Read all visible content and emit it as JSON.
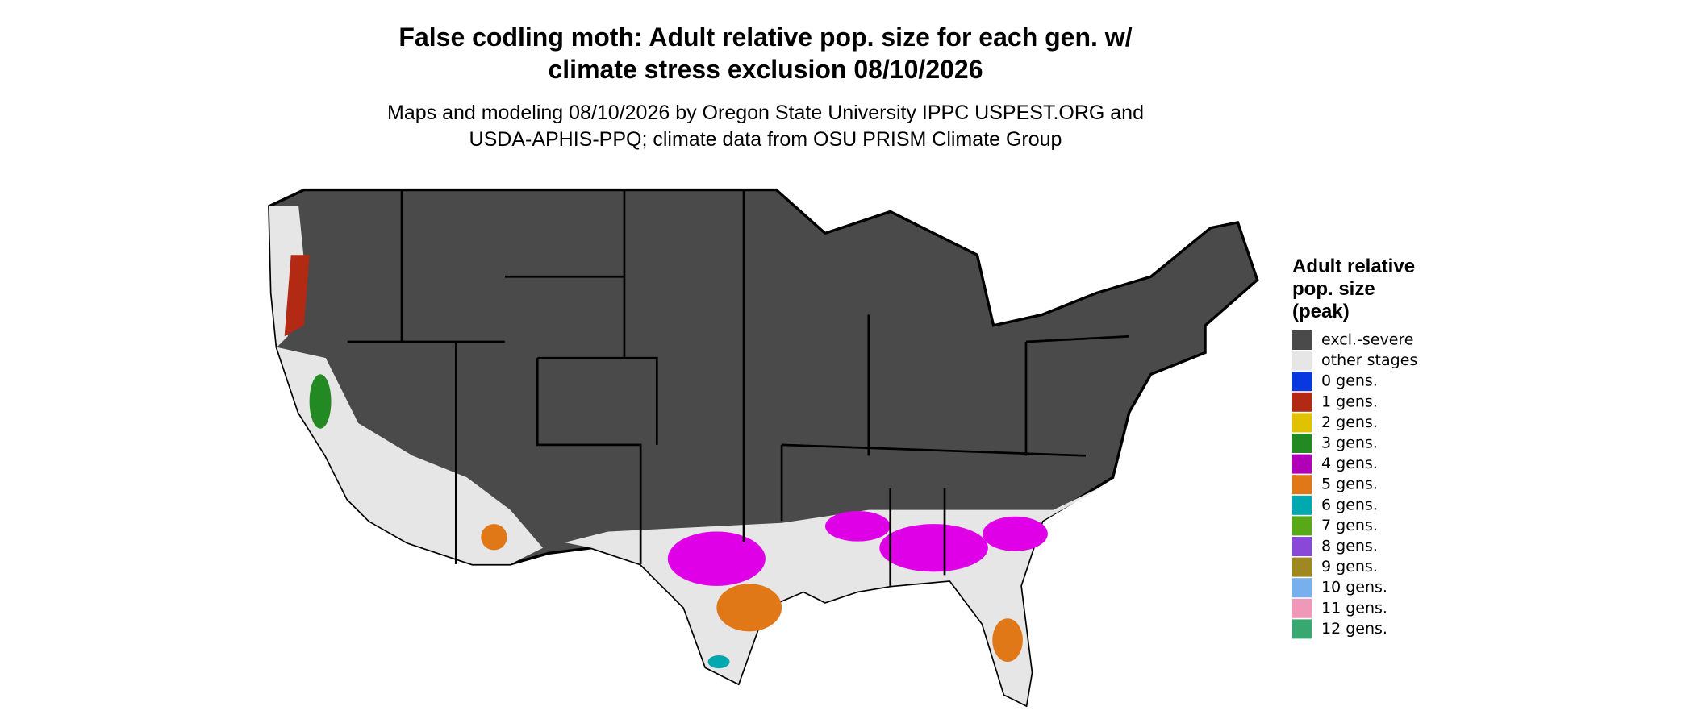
{
  "title_lines": [
    "False codling moth: Adult relative pop. size for each gen. w/",
    "climate stress exclusion 08/10/2026"
  ],
  "subtitle_lines": [
    "Maps and modeling 08/10/2026 by Oregon State University IPPC USPEST.ORG and",
    "USDA-APHIS-PPQ; climate data from OSU PRISM Climate Group"
  ],
  "legend": {
    "title_lines": [
      "Adult relative",
      "pop. size",
      "(peak)"
    ],
    "items": [
      {
        "label": "excl.-severe",
        "color": "#4a4a4a"
      },
      {
        "label": "other stages",
        "color": "#e6e6e6"
      },
      {
        "label": "0 gens.",
        "color": "#0a38e0"
      },
      {
        "label": "1 gens.",
        "color": "#b22a14"
      },
      {
        "label": "2 gens.",
        "color": "#e0c200"
      },
      {
        "label": "3 gens.",
        "color": "#238a23"
      },
      {
        "label": "4 gens.",
        "color": "#b000b8"
      },
      {
        "label": "5 gens.",
        "color": "#e07818"
      },
      {
        "label": "6 gens.",
        "color": "#00a8b0"
      },
      {
        "label": "7 gens.",
        "color": "#58a818"
      },
      {
        "label": "8 gens.",
        "color": "#8a48d8"
      },
      {
        "label": "9 gens.",
        "color": "#a08820"
      },
      {
        "label": "10 gens.",
        "color": "#78b0ee"
      },
      {
        "label": "11 gens.",
        "color": "#f098b8"
      },
      {
        "label": "12 gens.",
        "color": "#38a870"
      }
    ]
  }
}
